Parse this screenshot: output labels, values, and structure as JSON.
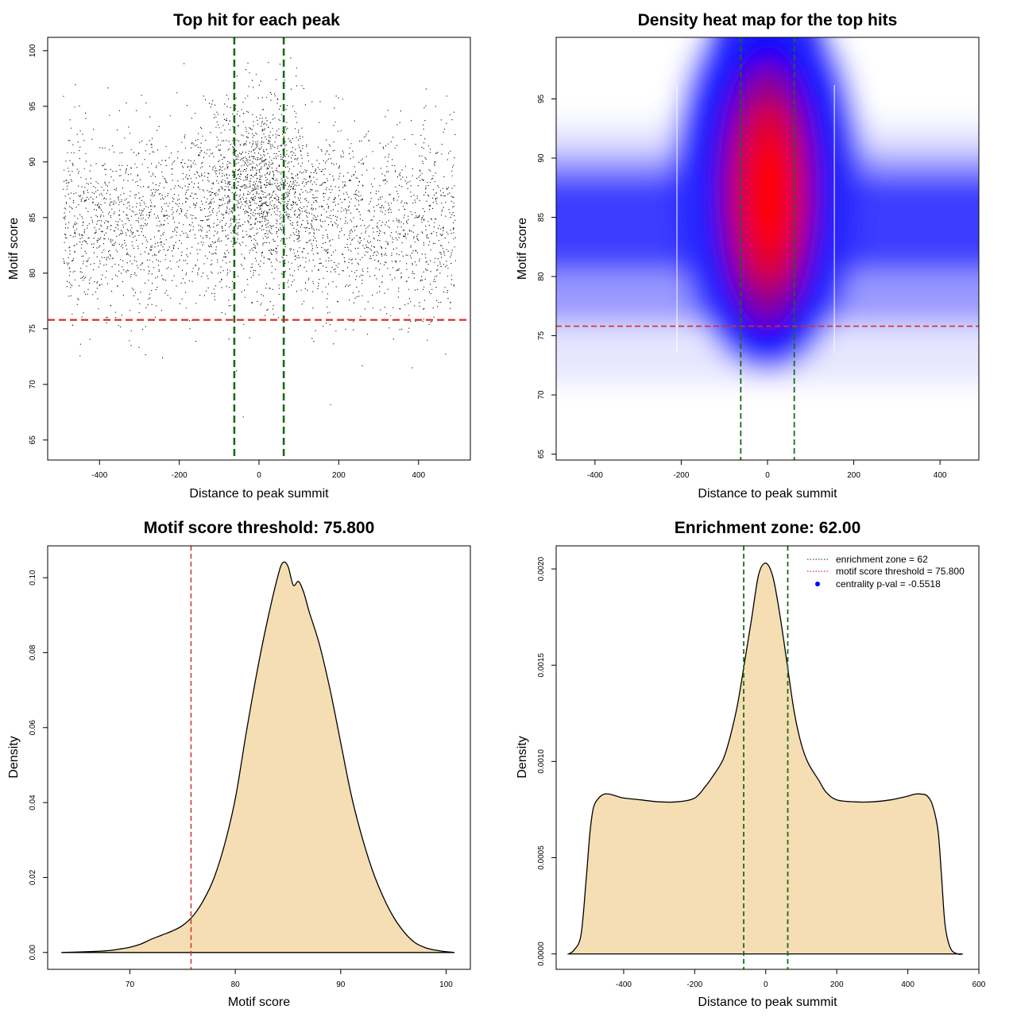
{
  "colors": {
    "green_line": "#1a6b1a",
    "red_line": "#dd2a2a",
    "fill": "#f5deb3",
    "points": "#000000",
    "heat_low": "#ffffff",
    "heat_mid": "#0000ff",
    "heat_high": "#ff0000",
    "legend_point": "#0000ff"
  },
  "chart_data": [
    {
      "id": "scatter",
      "type": "scatter",
      "title": "Top hit for each peak",
      "xlabel": "Distance to peak summit",
      "ylabel": "Motif score",
      "xlim": [
        -530,
        530
      ],
      "ylim": [
        63.2,
        101.2
      ],
      "xticks": [
        -400,
        -200,
        0,
        200,
        400
      ],
      "yticks": [
        65,
        70,
        75,
        80,
        85,
        90,
        95,
        100
      ],
      "vlines": [
        -62,
        62
      ],
      "hline": 75.8,
      "point_distribution": {
        "x_range": [
          -492,
          492
        ],
        "base_score_mean": 84.5,
        "base_score_sd": 4.2,
        "center_score_shift": 3,
        "center_width": 100
      }
    },
    {
      "id": "heatmap",
      "type": "heatmap",
      "title": "Density heat map for the top hits",
      "xlabel": "Distance to peak summit",
      "ylabel": "Motif score",
      "xlim": [
        -490,
        490
      ],
      "ylim": [
        64.5,
        100.2
      ],
      "xticks": [
        -400,
        -200,
        0,
        200,
        400
      ],
      "yticks": [
        65,
        70,
        75,
        80,
        85,
        90,
        95
      ],
      "vlines": [
        -62,
        62
      ],
      "hline": 75.8
    },
    {
      "id": "score-density",
      "type": "area",
      "title": "Motif score threshold: 75.800",
      "xlabel": "Motif score",
      "ylabel": "Density",
      "xlim": [
        62.2,
        102.3
      ],
      "ylim": [
        -0.0045,
        0.1085
      ],
      "xticks": [
        70,
        80,
        90,
        100
      ],
      "yticks": [
        0.0,
        0.02,
        0.04,
        0.06,
        0.08,
        0.1
      ],
      "ytick_labels": [
        "0.00",
        "0.02",
        "0.04",
        "0.06",
        "0.08",
        "0.10"
      ],
      "vline": 75.8,
      "x": [
        63.5,
        66,
        68,
        69,
        70,
        71,
        72,
        73,
        74,
        75,
        76,
        77,
        78,
        79,
        80,
        81,
        82,
        83,
        84,
        84.5,
        85,
        85.5,
        86,
        86.5,
        87,
        88,
        89,
        90,
        91,
        92,
        93,
        94,
        95,
        96,
        97,
        98,
        99,
        100,
        100.8
      ],
      "y": [
        0.0,
        0.0002,
        0.0005,
        0.0009,
        0.0014,
        0.0022,
        0.0035,
        0.0046,
        0.0057,
        0.0072,
        0.0098,
        0.014,
        0.02,
        0.029,
        0.041,
        0.058,
        0.074,
        0.088,
        0.1,
        0.104,
        0.103,
        0.098,
        0.099,
        0.096,
        0.091,
        0.082,
        0.07,
        0.056,
        0.042,
        0.031,
        0.022,
        0.015,
        0.0095,
        0.0055,
        0.0027,
        0.0013,
        0.0006,
        0.0002,
        0.0
      ]
    },
    {
      "id": "distance-density",
      "type": "area",
      "title": "Enrichment zone: 62.00",
      "xlabel": "Distance to peak summit",
      "ylabel": "Density",
      "xlim": [
        -590,
        600
      ],
      "ylim": [
        -8e-05,
        0.00212
      ],
      "xticks": [
        -400,
        -200,
        0,
        200,
        400,
        600
      ],
      "yticks": [
        0.0,
        0.0005,
        0.001,
        0.0015,
        0.002
      ],
      "ytick_labels": [
        "0.0000",
        "0.0005",
        "0.0010",
        "0.0015",
        "0.0020"
      ],
      "vlines": [
        -62,
        62
      ],
      "x": [
        -555,
        -540,
        -520,
        -505,
        -495,
        -485,
        -470,
        -455,
        -440,
        -420,
        -400,
        -350,
        -300,
        -250,
        -200,
        -170,
        -150,
        -120,
        -100,
        -80,
        -60,
        -40,
        -20,
        0,
        20,
        40,
        60,
        80,
        100,
        120,
        150,
        170,
        200,
        250,
        300,
        350,
        400,
        420,
        440,
        455,
        470,
        485,
        495,
        505,
        520,
        540,
        555
      ],
      "y": [
        0.0,
        2e-05,
        0.0001,
        0.0004,
        0.00063,
        0.00076,
        0.00081,
        0.00083,
        0.00083,
        0.00082,
        0.00081,
        0.0008,
        0.00079,
        0.00079,
        0.00081,
        0.00087,
        0.00092,
        0.00101,
        0.00113,
        0.00129,
        0.00151,
        0.00174,
        0.00197,
        0.00203,
        0.00196,
        0.00176,
        0.00151,
        0.00126,
        0.00109,
        0.00099,
        0.0009,
        0.00084,
        0.0008,
        0.00079,
        0.00079,
        0.0008,
        0.00082,
        0.00083,
        0.00083,
        0.00082,
        0.00077,
        0.00064,
        0.0004,
        0.00015,
        3e-05,
        0.0,
        0.0
      ],
      "legend": [
        {
          "label": "enrichment zone = 62",
          "style": "dotted-line",
          "color_key": "green_line"
        },
        {
          "label": "motif score threshold = 75.800",
          "style": "dotted-line",
          "color_key": "red_line"
        },
        {
          "label": "centrality p-val = -0.5518",
          "style": "point",
          "color_key": "legend_point"
        }
      ],
      "legend_position": "top-right"
    }
  ]
}
